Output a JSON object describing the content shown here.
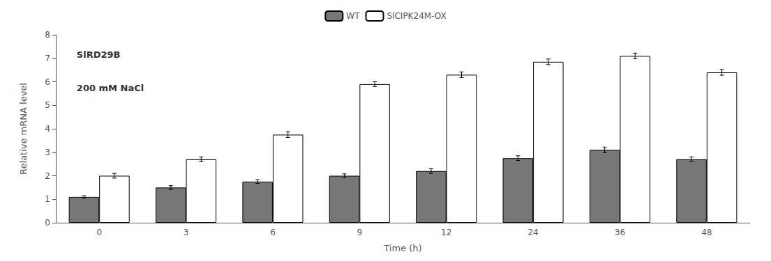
{
  "chart_data": {
    "type": "bar",
    "categories": [
      "0",
      "3",
      "6",
      "9",
      "12",
      "24",
      "36",
      "48"
    ],
    "series": [
      {
        "name": "WT",
        "color": "#777777",
        "values": [
          1.1,
          1.5,
          1.75,
          2.0,
          2.2,
          2.75,
          3.1,
          2.7
        ],
        "errors": [
          0.05,
          0.08,
          0.08,
          0.08,
          0.1,
          0.1,
          0.12,
          0.1
        ]
      },
      {
        "name": "SlCIPK24M-OX",
        "color": "#ffffff",
        "values": [
          2.0,
          2.7,
          3.75,
          5.9,
          6.3,
          6.85,
          7.1,
          6.4
        ],
        "errors": [
          0.1,
          0.1,
          0.12,
          0.1,
          0.12,
          0.12,
          0.12,
          0.12
        ]
      }
    ],
    "xlabel": "Time (h)",
    "ylabel": "Relative mRNA level",
    "annotations": [
      "SlRD29B",
      "200 mM NaCl"
    ],
    "ylim": [
      0,
      8
    ],
    "yticks": [
      0,
      1,
      2,
      3,
      4,
      5,
      6,
      7,
      8
    ],
    "grid": false,
    "legend": "top"
  }
}
